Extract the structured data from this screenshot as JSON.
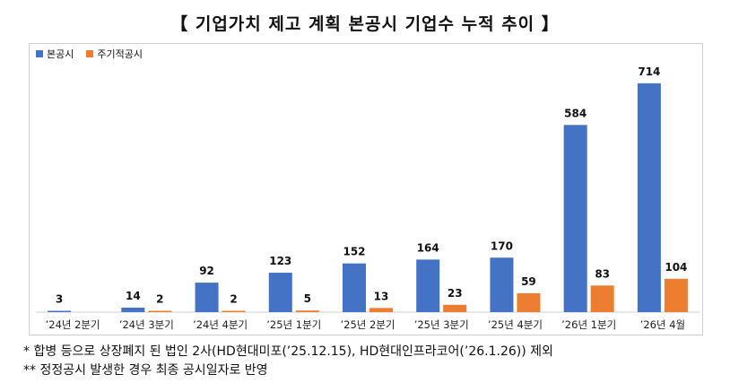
{
  "title": "【 기업가치 제고 계획 본공시 기업수 누적 추이 】",
  "legend": {
    "series1": "본공시",
    "series2": "주기적공시"
  },
  "colors": {
    "series1": "#4472C4",
    "series2": "#ED7D31"
  },
  "notes": [
    "* 합병 등으로 상장폐지 된 법인 2사(HD현대미포(’25.12.15), HD현대인프라코어(’26.1.26)) 제외",
    "** 정정공시 발생한 경우 최종 공시일자로 반영"
  ],
  "chart_data": {
    "type": "bar",
    "categories": [
      "’24년 2분기",
      "’24년 3분기",
      "’24년 4분기",
      "’25년 1분기",
      "’25년 2분기",
      "’25년 3분기",
      "’25년 4분기",
      "’26년 1분기",
      "’26년 4월"
    ],
    "series": [
      {
        "name": "본공시",
        "values": [
          3,
          14,
          92,
          123,
          152,
          164,
          170,
          584,
          714
        ],
        "labels": [
          "3",
          "14",
          "92",
          "123",
          "152",
          "164",
          "170",
          "584",
          "714"
        ]
      },
      {
        "name": "주기적공시",
        "values": [
          0,
          2,
          2,
          5,
          13,
          23,
          59,
          83,
          104
        ],
        "labels": [
          "",
          "2",
          "2",
          "5",
          "13",
          "23",
          "59",
          "83",
          "104"
        ]
      }
    ],
    "ylim": [
      0,
      750
    ],
    "grid": false,
    "legend_position": "top-left"
  }
}
